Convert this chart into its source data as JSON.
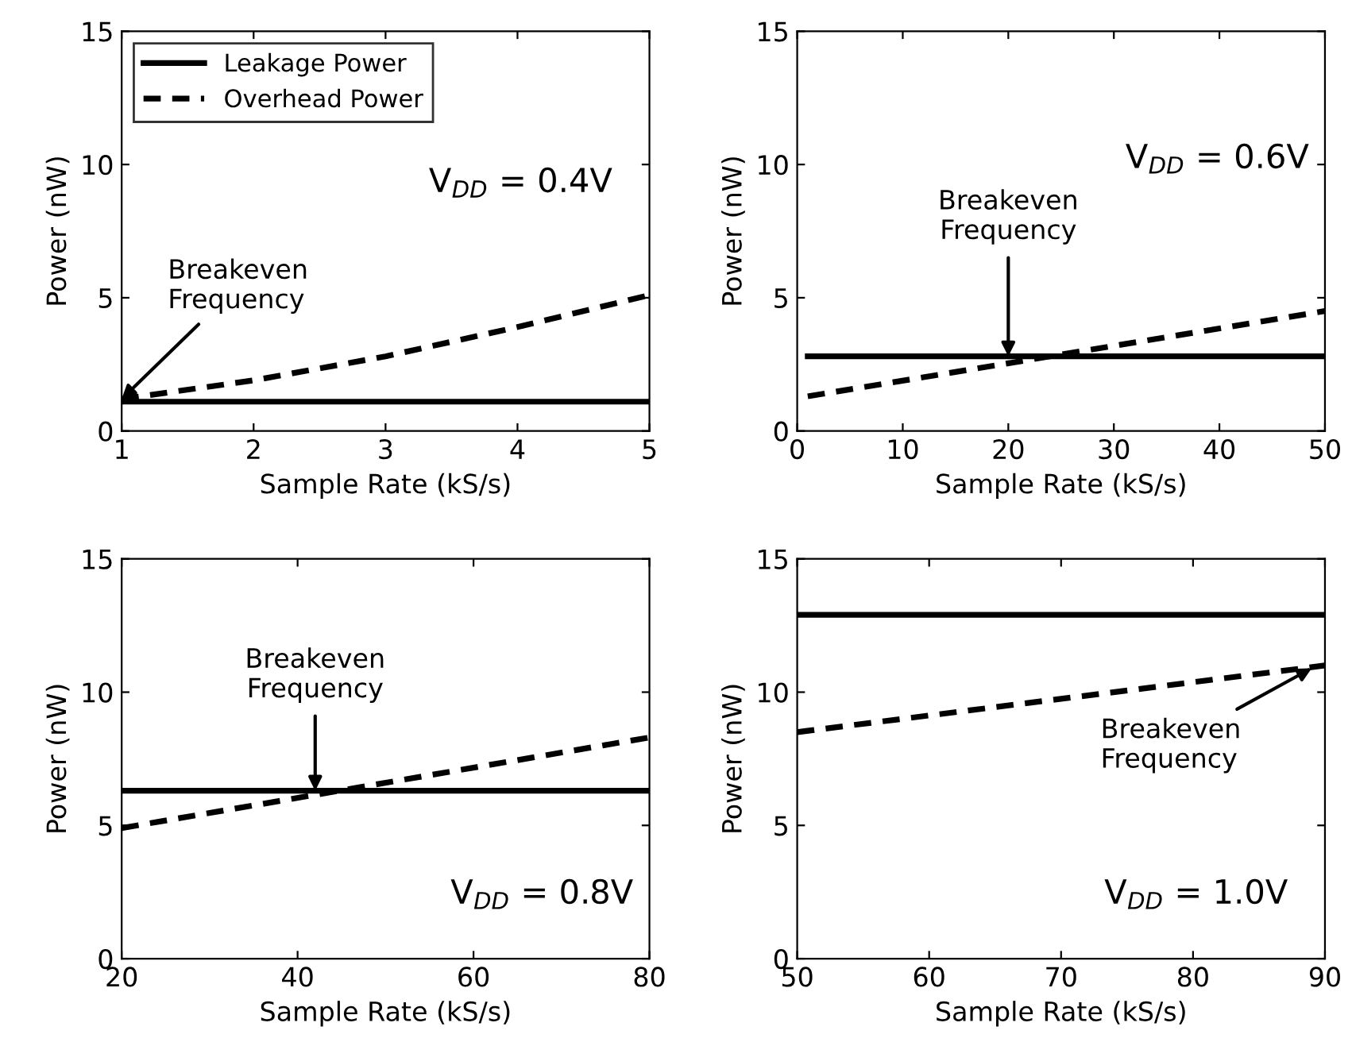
{
  "chart_data": [
    {
      "type": "line",
      "xlabel": "Sample Rate (kS/s)",
      "ylabel": "Power (nW)",
      "xlim": [
        1,
        5
      ],
      "xticks": [
        1,
        2,
        3,
        4,
        5
      ],
      "ylim": [
        0,
        15
      ],
      "yticks": [
        0,
        5,
        10,
        15
      ],
      "legend": "top left",
      "grid": false,
      "series": [
        {
          "name": "Leakage Power",
          "color": "#000000",
          "line_style": "solid",
          "x": [
            1,
            5
          ],
          "values": [
            1.1,
            1.1
          ]
        },
        {
          "name": "Overhead Power",
          "color": "#000000",
          "line_style": "dashed",
          "x": [
            1,
            2,
            3,
            4,
            5
          ],
          "values": [
            1.2,
            1.9,
            2.8,
            3.9,
            5.1
          ]
        }
      ],
      "annotations": [
        "V$_{DD}$ = 0.4V",
        {
          "text": "Breakeven\nFrequency",
          "x": 1,
          "y": 1.2
        }
      ]
    },
    {
      "type": "line",
      "xlabel": "Sample Rate (kS/s)",
      "ylabel": "Power (nW)",
      "xlim": [
        0,
        50
      ],
      "xticks": [
        0,
        10,
        20,
        30,
        40,
        50
      ],
      "ylim": [
        0,
        15
      ],
      "yticks": [
        0,
        5,
        10,
        15
      ],
      "grid": false,
      "series": [
        {
          "color": "#000000",
          "line_style": "solid",
          "x": [
            1,
            50
          ],
          "values": [
            2.8,
            2.8
          ]
        },
        {
          "color": "#000000",
          "line_style": "dashed",
          "x": [
            1,
            50
          ],
          "values": [
            1.3,
            4.5
          ]
        }
      ],
      "annotations": [
        "V$_{DD}$ = 0.6V",
        {
          "text": "Breakeven\nFrequency",
          "x": 20,
          "y": 2.8
        }
      ]
    },
    {
      "type": "line",
      "xlabel": "Sample Rate (kS/s)",
      "ylabel": "Power (nW)",
      "xlim": [
        20,
        80
      ],
      "xticks": [
        20,
        40,
        60,
        80
      ],
      "ylim": [
        0,
        15
      ],
      "yticks": [
        0,
        5,
        10,
        15
      ],
      "grid": false,
      "series": [
        {
          "color": "#000000",
          "line_style": "solid",
          "x": [
            20,
            80
          ],
          "values": [
            6.3,
            6.3
          ]
        },
        {
          "color": "#000000",
          "line_style": "dashed",
          "x": [
            20,
            80
          ],
          "values": [
            4.9,
            8.3
          ]
        }
      ],
      "annotations": [
        "V$_{DD}$ = 0.8V",
        {
          "text": "Breakeven\nFrequency",
          "x": 42,
          "y": 6.3
        }
      ]
    },
    {
      "type": "line",
      "xlabel": "Sample Rate (kS/s)",
      "ylabel": "Power (nW)",
      "xlim": [
        50,
        90
      ],
      "xticks": [
        50,
        60,
        70,
        80,
        90
      ],
      "ylim": [
        0,
        15
      ],
      "yticks": [
        0,
        5,
        10,
        15
      ],
      "grid": false,
      "series": [
        {
          "color": "#000000",
          "line_style": "solid",
          "x": [
            50,
            90
          ],
          "values": [
            12.9,
            12.9
          ]
        },
        {
          "color": "#000000",
          "line_style": "dashed",
          "x": [
            50,
            90
          ],
          "values": [
            8.5,
            11.0
          ]
        }
      ],
      "annotations": [
        "V$_{DD}$ = 1.0V",
        {
          "text": "Breakeven\nFrequency",
          "x": 89,
          "y": 10.9
        }
      ]
    }
  ]
}
